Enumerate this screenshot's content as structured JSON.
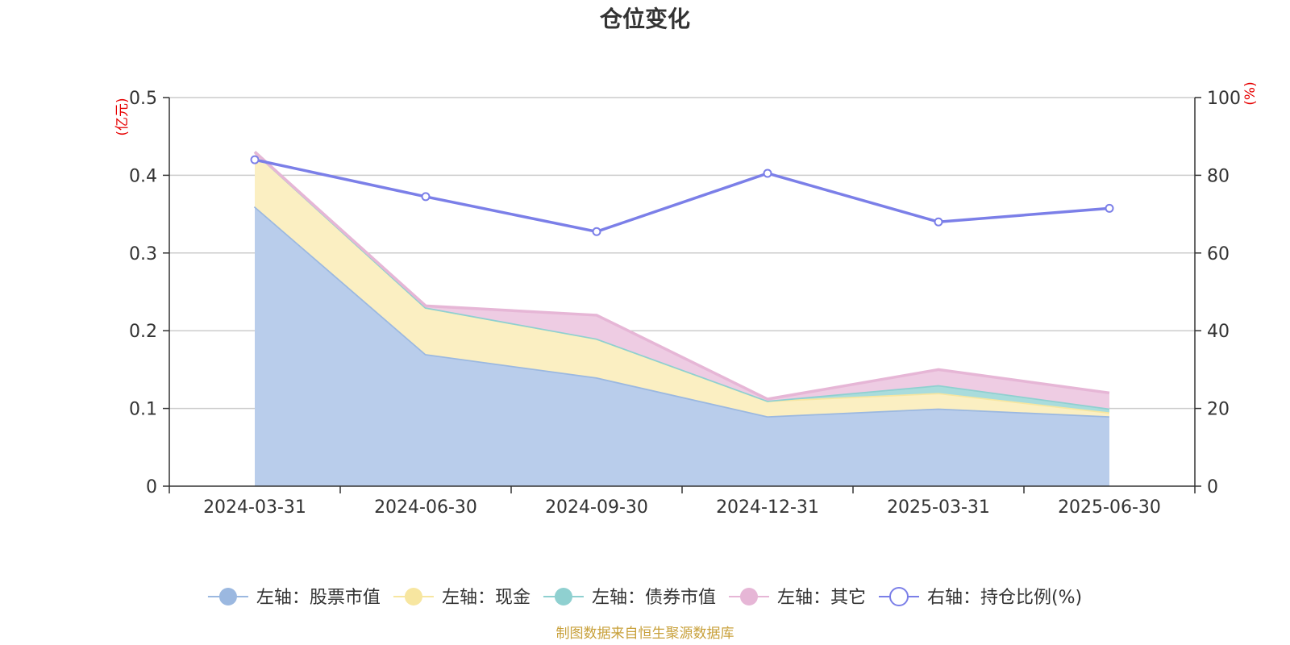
{
  "chart_data": {
    "type": "area",
    "title": "仓位变化",
    "categories": [
      "2024-03-31",
      "2024-06-30",
      "2024-09-30",
      "2024-12-31",
      "2025-03-31",
      "2025-06-30"
    ],
    "left_axis": {
      "unit": "(亿元)",
      "ylim": [
        0,
        0.5
      ],
      "ticks": [
        "0",
        "0.1",
        "0.2",
        "0.3",
        "0.4",
        "0.5"
      ]
    },
    "right_axis": {
      "unit": "(%)",
      "ylim": [
        0,
        100
      ],
      "ticks": [
        "0",
        "20",
        "40",
        "60",
        "80",
        "100"
      ]
    },
    "stacked_series": [
      {
        "name": "左轴：股票市值",
        "color": "#9bb8e0",
        "fill": "#b9cdeb",
        "values": [
          0.36,
          0.17,
          0.14,
          0.09,
          0.1,
          0.09
        ]
      },
      {
        "name": "左轴：现金",
        "color": "#f7e6a0",
        "fill": "#fbefc2",
        "values": [
          0.07,
          0.06,
          0.05,
          0.02,
          0.02,
          0.005
        ]
      },
      {
        "name": "左轴：债券市值",
        "color": "#8fd0d0",
        "fill": "#a9dcdc",
        "values": [
          0,
          0,
          0,
          0,
          0.01,
          0.005
        ]
      },
      {
        "name": "左轴：其它",
        "color": "#e6b6d6",
        "fill": "#eecce3",
        "values": [
          0.0,
          0.002,
          0.03,
          0.002,
          0.02,
          0.02
        ]
      }
    ],
    "line_series": {
      "name": "右轴：持仓比例(%)",
      "color": "#7b7fe8",
      "values": [
        84,
        74.5,
        65.5,
        80.5,
        68,
        71.5
      ]
    },
    "grid": true,
    "legend_position": "bottom-center"
  },
  "source": "制图数据来自恒生聚源数据库"
}
